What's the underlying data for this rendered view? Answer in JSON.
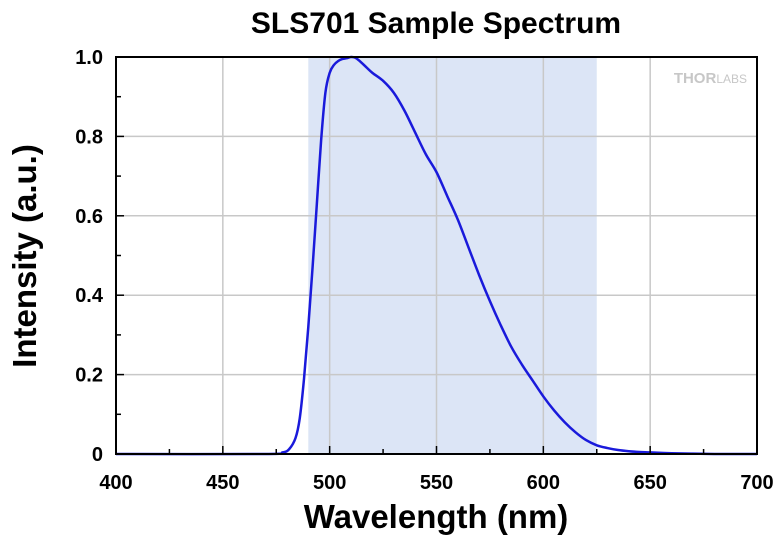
{
  "chart_data": {
    "type": "line",
    "title": "SLS701 Sample Spectrum",
    "xlabel": "Wavelength (nm)",
    "ylabel": "Intensity (a.u.)",
    "xlim": [
      400,
      700
    ],
    "ylim": [
      0,
      1.0
    ],
    "x_ticks": [
      "400",
      "450",
      "500",
      "550",
      "600",
      "650",
      "700"
    ],
    "y_ticks": [
      "0",
      "0.2",
      "0.4",
      "0.6",
      "0.8",
      "1.0"
    ],
    "x_minor_step": 25,
    "y_minor_step": 0.1,
    "grid": true,
    "highlight_band": {
      "from": 490,
      "to": 625,
      "color": "#dce5f6"
    },
    "line_color": "#1a1adb",
    "watermark": {
      "main": "THOR",
      "suffix": "LABS"
    },
    "series": [
      {
        "x": [
          400,
          470,
          478,
          481,
          484,
          486,
          488,
          490,
          492,
          494,
          496,
          498,
          500,
          502,
          504,
          506,
          508,
          510,
          512,
          514,
          517,
          520,
          525,
          530,
          535,
          540,
          545,
          550,
          555,
          560,
          565,
          570,
          575,
          580,
          585,
          590,
          595,
          600,
          605,
          610,
          615,
          620,
          625,
          630,
          635,
          640,
          645,
          650,
          660,
          670,
          680,
          690,
          700
        ],
        "y": [
          0,
          0,
          0.004,
          0.012,
          0.04,
          0.09,
          0.19,
          0.32,
          0.47,
          0.63,
          0.79,
          0.91,
          0.96,
          0.98,
          0.99,
          0.995,
          0.997,
          1.0,
          0.998,
          0.99,
          0.975,
          0.96,
          0.94,
          0.91,
          0.865,
          0.81,
          0.755,
          0.71,
          0.65,
          0.59,
          0.52,
          0.45,
          0.385,
          0.325,
          0.27,
          0.225,
          0.185,
          0.145,
          0.11,
          0.08,
          0.055,
          0.035,
          0.022,
          0.015,
          0.01,
          0.007,
          0.005,
          0.004,
          0.002,
          0.001,
          0,
          0,
          0
        ]
      }
    ]
  }
}
